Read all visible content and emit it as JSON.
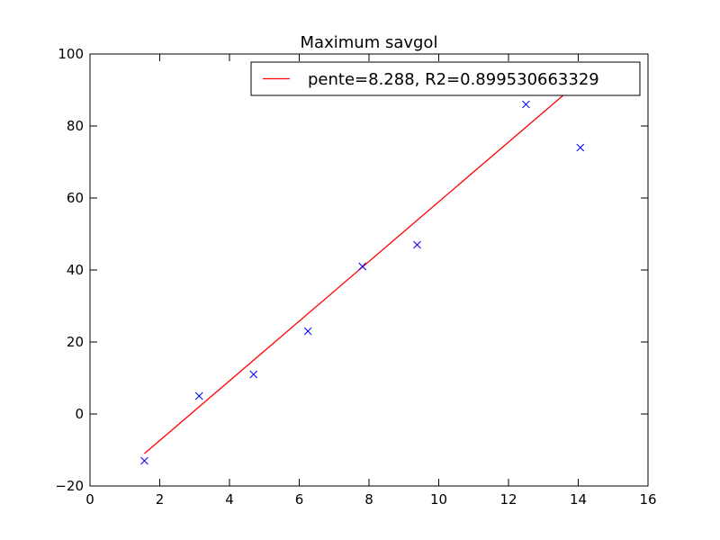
{
  "chart_data": {
    "type": "scatter",
    "title": "Maximum savgol",
    "xlabel": "",
    "ylabel": "",
    "xlim": [
      0,
      16
    ],
    "ylim": [
      -20,
      100
    ],
    "x_ticks": [
      0,
      2,
      4,
      6,
      8,
      10,
      12,
      14,
      16
    ],
    "y_ticks": [
      -20,
      0,
      20,
      40,
      60,
      80,
      100
    ],
    "x_tick_labels": [
      "0",
      "2",
      "4",
      "6",
      "8",
      "10",
      "12",
      "14",
      "16"
    ],
    "y_tick_labels": [
      "−20",
      "0",
      "20",
      "40",
      "60",
      "80",
      "100"
    ],
    "grid": false,
    "legend_position": "top-right",
    "points": {
      "marker": "x",
      "color": "#0000ff",
      "x": [
        1.56,
        3.13,
        4.69,
        6.25,
        7.81,
        9.38,
        12.5,
        14.06
      ],
      "y": [
        -13,
        5,
        11,
        23,
        41,
        47,
        86,
        74
      ]
    },
    "series": [
      {
        "name": "pente=8.288, R2=0.899530663329",
        "type": "line",
        "color": "#ff0000",
        "x": [
          1.56,
          14.06
        ],
        "y": [
          -11,
          92.6
        ]
      }
    ]
  }
}
